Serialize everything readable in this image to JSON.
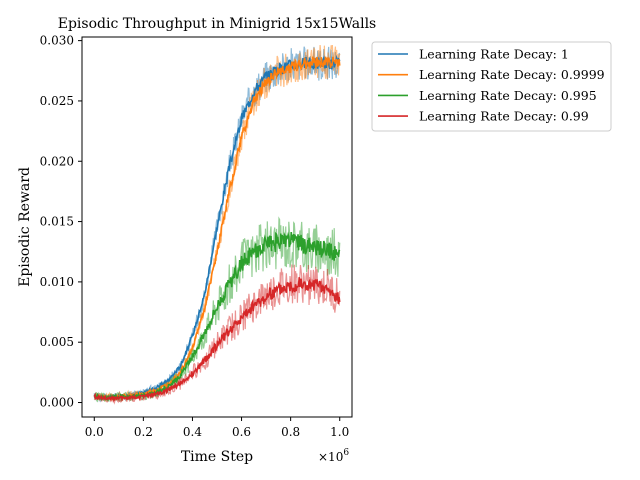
{
  "chart_data": {
    "type": "line",
    "title": "Episodic Throughput in Minigrid 15x15Walls",
    "xlabel": "Time Step",
    "ylabel": "Episodic Reward",
    "x_multiplier_label": "×10",
    "x_multiplier_exp": "6",
    "xlim": [
      -0.05,
      1.05
    ],
    "ylim": [
      -0.0012,
      0.0303
    ],
    "xticks": [
      0.0,
      0.2,
      0.4,
      0.6,
      0.8,
      1.0
    ],
    "xtick_labels": [
      "0.0",
      "0.2",
      "0.4",
      "0.6",
      "0.8",
      "1.0"
    ],
    "yticks": [
      0.0,
      0.005,
      0.01,
      0.015,
      0.02,
      0.025,
      0.03
    ],
    "ytick_labels": [
      "0.000",
      "0.005",
      "0.010",
      "0.015",
      "0.020",
      "0.025",
      "0.030"
    ],
    "grid": false,
    "legend_position": "outside-right-top",
    "x": [
      0.0,
      0.05,
      0.1,
      0.15,
      0.2,
      0.25,
      0.3,
      0.35,
      0.4,
      0.45,
      0.5,
      0.55,
      0.6,
      0.65,
      0.7,
      0.75,
      0.8,
      0.85,
      0.9,
      0.95,
      1.0
    ],
    "series": [
      {
        "name": "Learning Rate Decay: 1",
        "color": "#1f77b4",
        "values": [
          0.0005,
          0.0004,
          0.0005,
          0.0006,
          0.0008,
          0.0012,
          0.0018,
          0.003,
          0.0055,
          0.009,
          0.0145,
          0.0195,
          0.0235,
          0.0258,
          0.027,
          0.0276,
          0.028,
          0.0281,
          0.0281,
          0.0281,
          0.0281
        ]
      },
      {
        "name": "Learning Rate Decay: 0.9999",
        "color": "#ff7f0e",
        "values": [
          0.0005,
          0.0004,
          0.0005,
          0.0006,
          0.0007,
          0.001,
          0.0015,
          0.0025,
          0.0045,
          0.0078,
          0.0125,
          0.0175,
          0.022,
          0.025,
          0.0266,
          0.0274,
          0.0278,
          0.0281,
          0.0282,
          0.0282,
          0.0282
        ]
      },
      {
        "name": "Learning Rate Decay: 0.995",
        "color": "#2ca02c",
        "values": [
          0.0005,
          0.0004,
          0.0005,
          0.0005,
          0.0006,
          0.0008,
          0.0013,
          0.0022,
          0.0038,
          0.0058,
          0.008,
          0.0098,
          0.0115,
          0.0125,
          0.013,
          0.0133,
          0.0134,
          0.0131,
          0.0128,
          0.0126,
          0.0123
        ]
      },
      {
        "name": "Learning Rate Decay: 0.99",
        "color": "#d62728",
        "values": [
          0.0005,
          0.0003,
          0.0004,
          0.0004,
          0.0005,
          0.0007,
          0.001,
          0.0016,
          0.0024,
          0.0035,
          0.0048,
          0.006,
          0.007,
          0.008,
          0.0088,
          0.0094,
          0.0098,
          0.0098,
          0.0097,
          0.0094,
          0.0086
        ]
      }
    ]
  }
}
